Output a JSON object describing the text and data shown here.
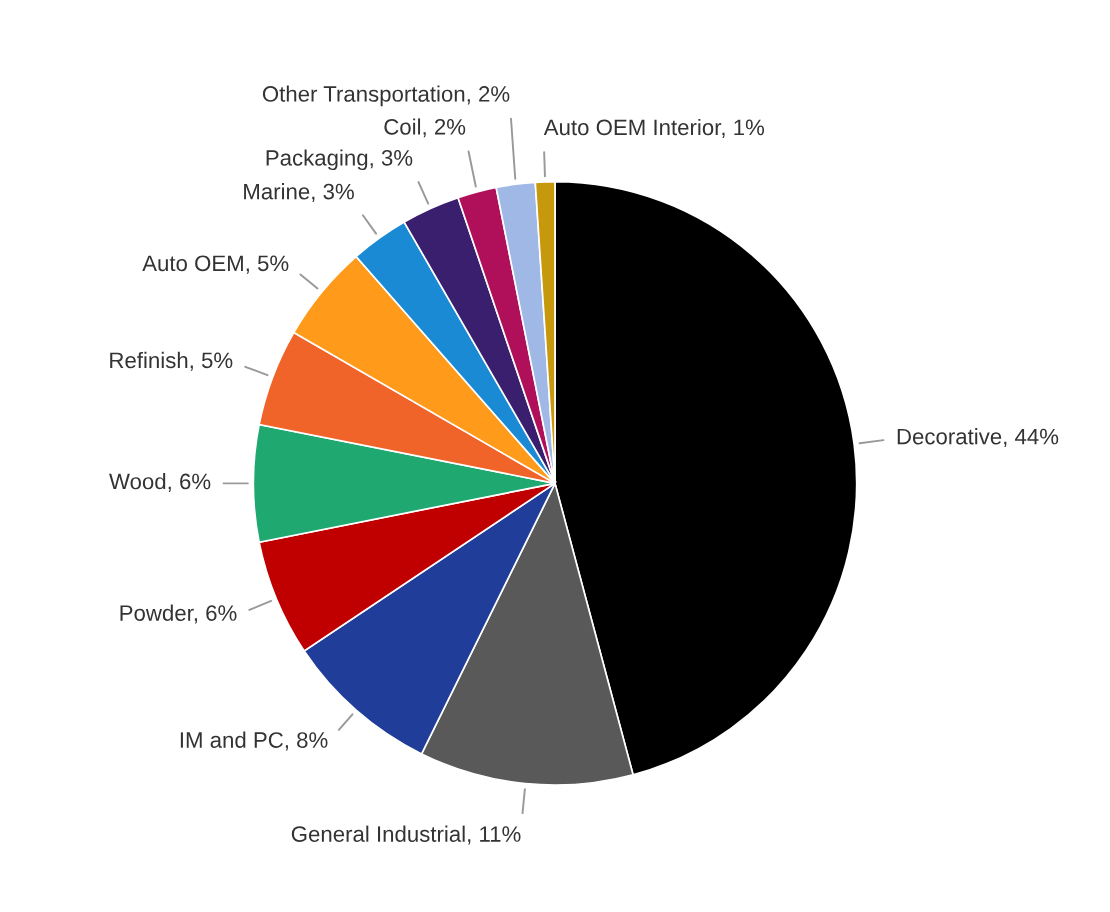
{
  "chart_data": {
    "type": "pie",
    "categories": [
      "Decorative",
      "General Industrial",
      "IM and PC",
      "Powder",
      "Wood",
      "Refinish",
      "Auto OEM",
      "Marine",
      "Packaging",
      "Coil",
      "Other Transportation",
      "Auto OEM Interior"
    ],
    "values": [
      44,
      11,
      8,
      6,
      6,
      5,
      5,
      3,
      3,
      2,
      2,
      1
    ],
    "value_labels": [
      "44%",
      "11%",
      "8%",
      "6%",
      "6%",
      "5%",
      "5%",
      "3%",
      "3%",
      "2%",
      "2%",
      "1%"
    ],
    "colors": [
      "#000000",
      "#595959",
      "#1f3d99",
      "#c00000",
      "#1fa870",
      "#f0642a",
      "#ff9a1a",
      "#1a8ad4",
      "#3a1f6e",
      "#b0105a",
      "#9fb8e6",
      "#c8980c"
    ],
    "legend": false
  }
}
